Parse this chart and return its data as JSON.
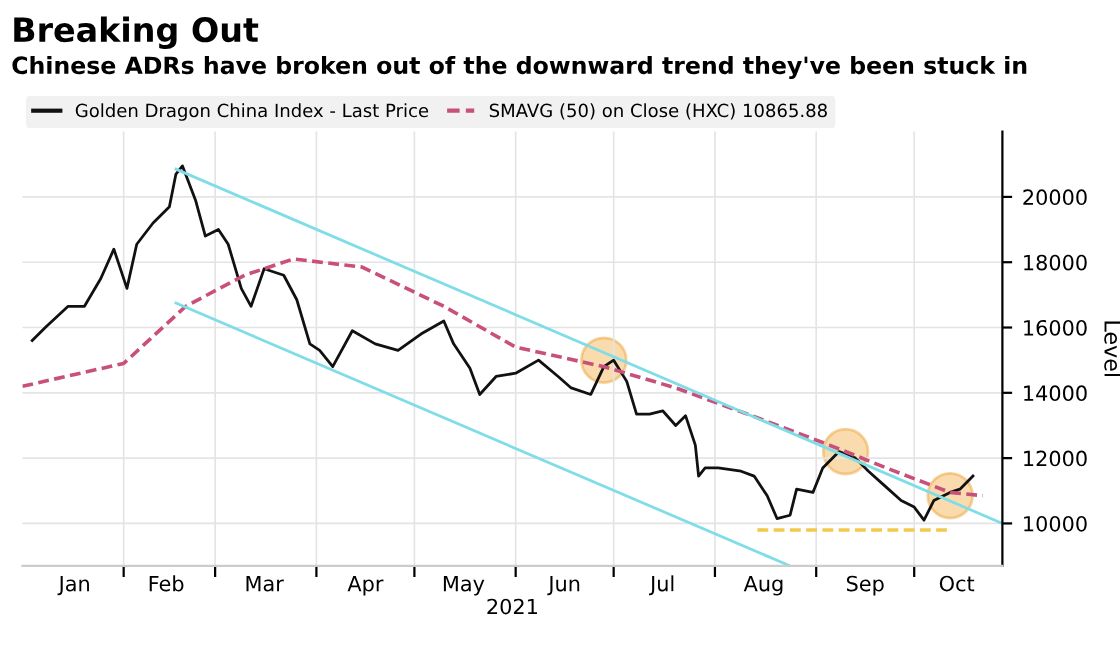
{
  "chart_data": {
    "type": "line",
    "title": "Breaking Out",
    "subtitle": "Chinese ADRs have broken out of the downward trend they've been stuck in",
    "xlabel": "2021",
    "ylabel": "Level",
    "series": [
      {
        "name": "Golden Dragon China Index - Last Price",
        "color": "#111111",
        "x": [
          "2021-01-04",
          "2021-01-08",
          "2021-01-15",
          "2021-01-20",
          "2021-01-25",
          "2021-01-29",
          "2021-02-02",
          "2021-02-05",
          "2021-02-10",
          "2021-02-15",
          "2021-02-17",
          "2021-02-19",
          "2021-02-23",
          "2021-02-26",
          "2021-03-02",
          "2021-03-05",
          "2021-03-09",
          "2021-03-12",
          "2021-03-16",
          "2021-03-22",
          "2021-03-26",
          "2021-03-30",
          "2021-04-02",
          "2021-04-06",
          "2021-04-12",
          "2021-04-19",
          "2021-04-26",
          "2021-05-03",
          "2021-05-10",
          "2021-05-13",
          "2021-05-18",
          "2021-05-21",
          "2021-05-26",
          "2021-06-01",
          "2021-06-08",
          "2021-06-14",
          "2021-06-18",
          "2021-06-24",
          "2021-06-28",
          "2021-07-01",
          "2021-07-05",
          "2021-07-08",
          "2021-07-12",
          "2021-07-16",
          "2021-07-20",
          "2021-07-23",
          "2021-07-26",
          "2021-07-27",
          "2021-07-29",
          "2021-08-02",
          "2021-08-09",
          "2021-08-13",
          "2021-08-17",
          "2021-08-20",
          "2021-08-24",
          "2021-08-26",
          "2021-08-31",
          "2021-09-03",
          "2021-09-08",
          "2021-09-13",
          "2021-09-17",
          "2021-09-22",
          "2021-09-27",
          "2021-10-01",
          "2021-10-04",
          "2021-10-07",
          "2021-10-12",
          "2021-10-15",
          "2021-10-19"
        ],
        "values": [
          15600,
          16000,
          16650,
          16650,
          17500,
          18400,
          17200,
          18550,
          19200,
          19700,
          20700,
          20950,
          19900,
          18800,
          19000,
          18550,
          17200,
          16650,
          17800,
          17600,
          16850,
          15500,
          15300,
          14800,
          15900,
          15500,
          15300,
          15800,
          16200,
          15500,
          14750,
          13950,
          14500,
          14600,
          15000,
          14500,
          14150,
          13950,
          14800,
          15000,
          14350,
          13350,
          13350,
          13450,
          13000,
          13300,
          12400,
          11450,
          11700,
          11700,
          11600,
          11450,
          10850,
          10150,
          10250,
          11050,
          10950,
          11700,
          12200,
          12000,
          11600,
          11150,
          10700,
          10500,
          10100,
          10700,
          10950,
          11050,
          11450
        ]
      },
      {
        "name": "SMAVG (50) on Close (HXC) 10865.88",
        "color": "#c8507a",
        "line_style": "dashed",
        "x": [
          "2021-01-01",
          "2021-02-01",
          "2021-02-20",
          "2021-03-10",
          "2021-03-25",
          "2021-04-15",
          "2021-05-10",
          "2021-06-01",
          "2021-06-28",
          "2021-07-20",
          "2021-08-15",
          "2021-09-05",
          "2021-09-25",
          "2021-10-12",
          "2021-10-22"
        ],
        "values": [
          14200,
          14900,
          16650,
          17600,
          18100,
          17850,
          16650,
          15400,
          14800,
          14150,
          13200,
          12400,
          11600,
          10950,
          10850
        ]
      },
      {
        "color": "#7fdde8",
        "x": [
          "2021-02-17",
          "2021-10-28"
        ],
        "values": [
          20850,
          10000
        ]
      },
      {
        "color": "#7fdde8",
        "x": [
          "2021-02-17",
          "2021-08-24"
        ],
        "values": [
          16750,
          8700
        ]
      },
      {
        "color": "#f2c94c",
        "line_style": "dashed",
        "x": [
          "2021-08-14",
          "2021-10-11"
        ],
        "values": [
          9800,
          9800
        ]
      },
      {
        "type": "scatter",
        "color": "#f5b04a",
        "x": [
          "2021-06-28",
          "2021-09-10",
          "2021-10-12"
        ],
        "values": [
          15000,
          12200,
          10850
        ]
      }
    ],
    "xlim": [
      "2021-01-01",
      "2021-10-28"
    ],
    "xticks": [
      {
        "value": "2021-02-01",
        "label": null
      },
      {
        "value": "2021-03-01",
        "label": null
      },
      {
        "value": "2021-04-01",
        "label": null
      },
      {
        "value": "2021-05-01",
        "label": null
      },
      {
        "value": "2021-06-01",
        "label": null
      },
      {
        "value": "2021-07-01",
        "label": null
      },
      {
        "value": "2021-08-01",
        "label": null
      },
      {
        "value": "2021-09-01",
        "label": null
      },
      {
        "value": "2021-10-01",
        "label": null
      },
      {
        "value": "2021-01-17",
        "label": "Jan"
      },
      {
        "value": "2021-02-14",
        "label": "Feb"
      },
      {
        "value": "2021-03-16",
        "label": "Mar"
      },
      {
        "value": "2021-04-16",
        "label": "Apr"
      },
      {
        "value": "2021-05-16",
        "label": "May"
      },
      {
        "value": "2021-06-16",
        "label": "Jun"
      },
      {
        "value": "2021-07-16",
        "label": "Jul"
      },
      {
        "value": "2021-08-16",
        "label": "Aug"
      },
      {
        "value": "2021-09-16",
        "label": "Sep"
      },
      {
        "value": "2021-10-14",
        "label": "Oct"
      }
    ],
    "ylim": [
      8700,
      22000
    ],
    "yticks": [
      10000,
      12000,
      14000,
      16000,
      18000,
      20000
    ],
    "grid": true,
    "legend": "top left"
  }
}
